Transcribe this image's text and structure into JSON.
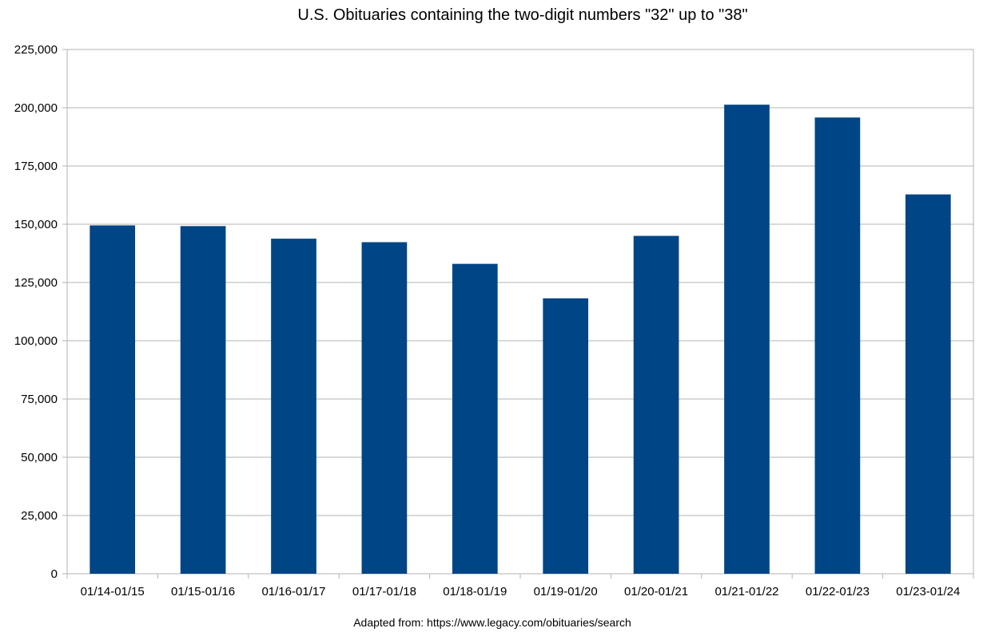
{
  "chart_data": {
    "type": "bar",
    "title": "U.S. Obituaries containing the two-digit numbers \"32\" up to \"38\"",
    "xlabel": "",
    "ylabel": "",
    "categories": [
      "01/14-01/15",
      "01/15-01/16",
      "01/16-01/17",
      "01/17-01/18",
      "01/18-01/19",
      "01/19-01/20",
      "01/20-01/21",
      "01/21-01/22",
      "01/22-01/23",
      "01/23-01/24"
    ],
    "values": [
      149500,
      149200,
      143800,
      142300,
      133000,
      118200,
      145000,
      201300,
      195800,
      162800
    ],
    "ylim": [
      0,
      225000
    ],
    "yticks": [
      0,
      25000,
      50000,
      75000,
      100000,
      125000,
      150000,
      175000,
      200000,
      225000
    ],
    "ytick_labels": [
      "0",
      "25,000",
      "50,000",
      "75,000",
      "100,000",
      "125,000",
      "150,000",
      "175,000",
      "200,000",
      "225,000"
    ],
    "grid": true,
    "bar_color": "#004586",
    "grid_color": "#b3b3b3"
  },
  "caption": "Adapted from: https://www.legacy.com/obituaries/search"
}
